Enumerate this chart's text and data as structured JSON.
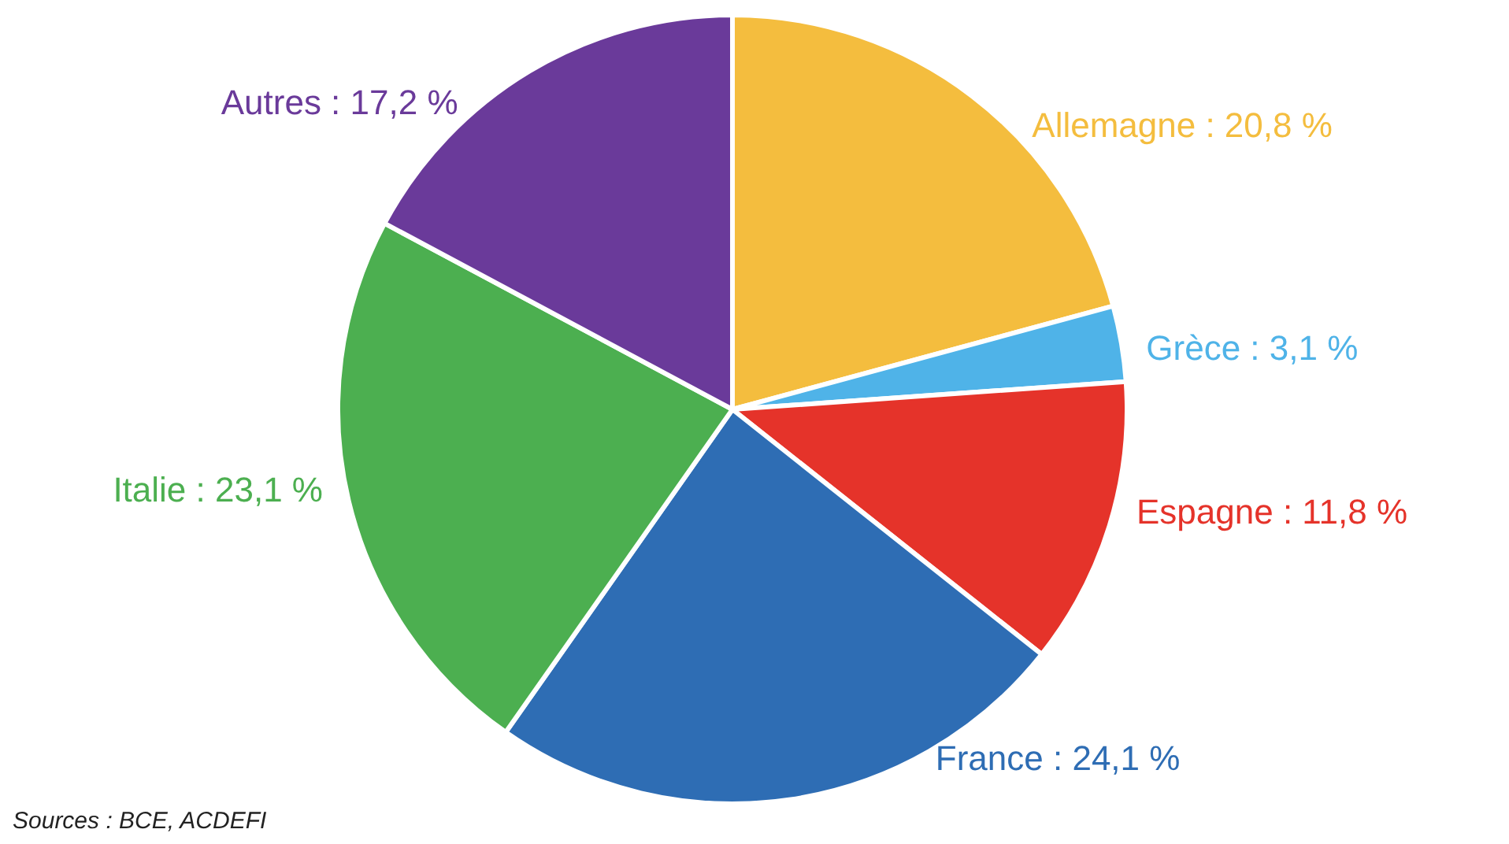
{
  "chart_data": {
    "type": "pie",
    "categories": [
      "Allemagne",
      "Grèce",
      "Espagne",
      "France",
      "Italie",
      "Autres"
    ],
    "values": [
      20.8,
      3.1,
      11.8,
      24.1,
      23.1,
      17.2
    ],
    "value_labels": [
      "20,8 %",
      "3,1 %",
      "11,8 %",
      "24,1 %",
      "23,1 %",
      "17,2 %"
    ],
    "colors": [
      "#f4bd3e",
      "#4fb3e8",
      "#e5332a",
      "#2e6db4",
      "#4caf50",
      "#6a3a9a"
    ],
    "legend": false,
    "annotations": [
      "Sources : BCE, ACDEFI"
    ]
  }
}
